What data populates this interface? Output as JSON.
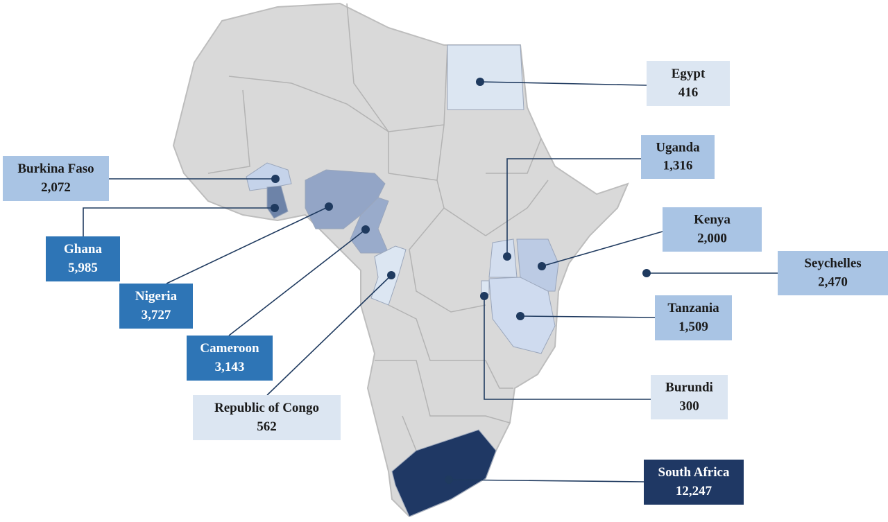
{
  "countries": [
    {
      "name": "Egypt",
      "value": "416",
      "box_color": "#dce6f2",
      "fill": "#dce6f2"
    },
    {
      "name": "Burkina Faso",
      "value": "2,072",
      "box_color": "#a9c4e4",
      "fill": "#c5d3ea"
    },
    {
      "name": "Ghana",
      "value": "5,985",
      "box_color": "#2e75b6",
      "fill": "#6d83a8"
    },
    {
      "name": "Nigeria",
      "value": "3,727",
      "box_color": "#2e75b6",
      "fill": "#93a5c6"
    },
    {
      "name": "Cameroon",
      "value": "3,143",
      "box_color": "#2e75b6",
      "fill": "#99abcb"
    },
    {
      "name": "Republic of Congo",
      "value": "562",
      "box_color": "#dce6f2",
      "fill": "#dce6f2"
    },
    {
      "name": "Uganda",
      "value": "1,316",
      "box_color": "#a9c4e4",
      "fill": "#d3deef"
    },
    {
      "name": "Kenya",
      "value": "2,000",
      "box_color": "#a9c4e4",
      "fill": "#bccbe4"
    },
    {
      "name": "Seychelles",
      "value": "2,470",
      "box_color": "#a9c4e4",
      "fill": "#a9c4e4"
    },
    {
      "name": "Tanzania",
      "value": "1,509",
      "box_color": "#a9c4e4",
      "fill": "#cfdbef"
    },
    {
      "name": "Burundi",
      "value": "300",
      "box_color": "#dce6f2",
      "fill": "#dce6f2"
    },
    {
      "name": "South Africa",
      "value": "12,247",
      "box_color": "#1f3864",
      "fill": "#1f3864"
    }
  ]
}
